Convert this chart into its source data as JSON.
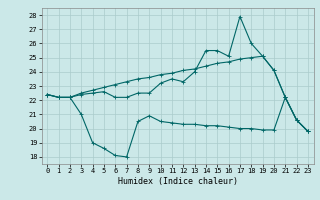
{
  "title": "",
  "xlabel": "Humidex (Indice chaleur)",
  "bg_color": "#cbe8e8",
  "grid_color": "#aacccc",
  "line_color": "#006666",
  "xlim": [
    -0.5,
    23.5
  ],
  "ylim": [
    17.5,
    28.5
  ],
  "yticks": [
    18,
    19,
    20,
    21,
    22,
    23,
    24,
    25,
    26,
    27,
    28
  ],
  "xticks": [
    0,
    1,
    2,
    3,
    4,
    5,
    6,
    7,
    8,
    9,
    10,
    11,
    12,
    13,
    14,
    15,
    16,
    17,
    18,
    19,
    20,
    21,
    22,
    23
  ],
  "line1_x": [
    0,
    1,
    2,
    3,
    4,
    5,
    6,
    7,
    8,
    9,
    10,
    11,
    12,
    13,
    14,
    15,
    16,
    17,
    18,
    19,
    20,
    21,
    22,
    23
  ],
  "line1_y": [
    22.4,
    22.2,
    22.2,
    22.4,
    22.5,
    22.6,
    22.2,
    22.2,
    22.5,
    22.5,
    23.2,
    23.5,
    23.3,
    24.0,
    25.5,
    25.5,
    25.1,
    27.9,
    26.0,
    25.1,
    24.1,
    22.2,
    20.6,
    19.8
  ],
  "line2_x": [
    0,
    1,
    2,
    3,
    4,
    5,
    6,
    7,
    8,
    9,
    10,
    11,
    12,
    13,
    14,
    15,
    16,
    17,
    18,
    19,
    20,
    21,
    22,
    23
  ],
  "line2_y": [
    22.4,
    22.2,
    22.2,
    22.5,
    22.7,
    22.9,
    23.1,
    23.3,
    23.5,
    23.6,
    23.8,
    23.9,
    24.1,
    24.2,
    24.4,
    24.6,
    24.7,
    24.9,
    25.0,
    25.1,
    24.1,
    22.2,
    20.6,
    19.8
  ],
  "line3_x": [
    0,
    1,
    2,
    3,
    4,
    5,
    6,
    7,
    8,
    9,
    10,
    11,
    12,
    13,
    14,
    15,
    16,
    17,
    18,
    19,
    20,
    21,
    22,
    23
  ],
  "line3_y": [
    22.4,
    22.2,
    22.2,
    21.0,
    19.0,
    18.6,
    18.1,
    18.0,
    20.5,
    20.9,
    20.5,
    20.4,
    20.3,
    20.3,
    20.2,
    20.2,
    20.1,
    20.0,
    20.0,
    19.9,
    19.9,
    22.2,
    20.6,
    19.8
  ]
}
